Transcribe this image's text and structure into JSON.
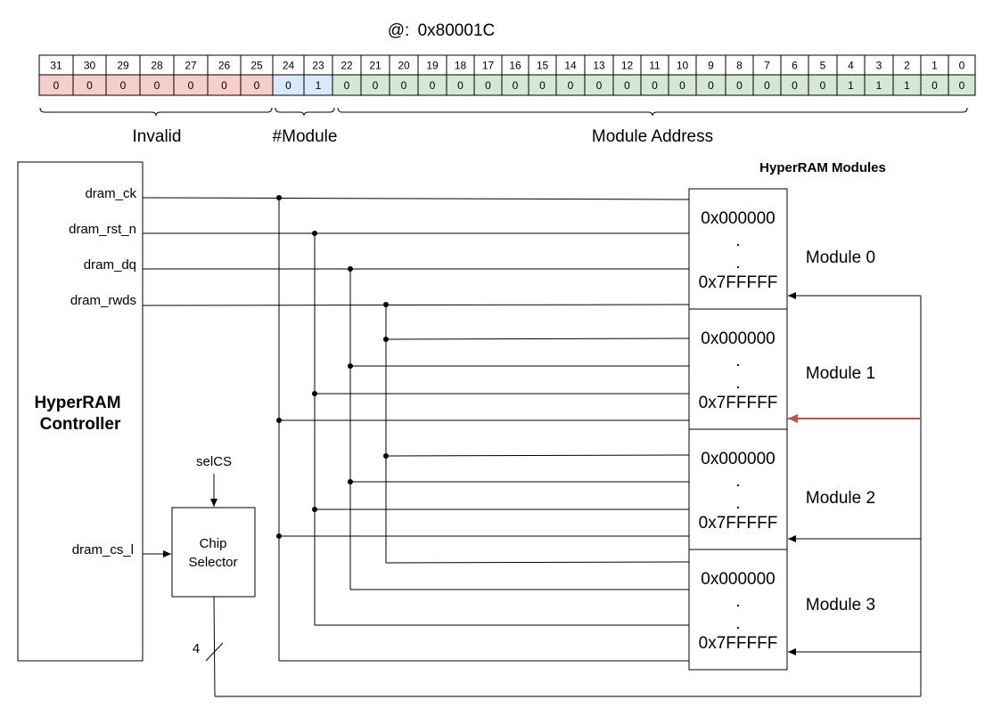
{
  "address": {
    "prefix": "@:",
    "value": "0x80001C"
  },
  "bits": {
    "numbers": [
      "31",
      "30",
      "29",
      "28",
      "27",
      "26",
      "25",
      "24",
      "23",
      "22",
      "21",
      "20",
      "19",
      "18",
      "17",
      "16",
      "15",
      "14",
      "13",
      "12",
      "11",
      "10",
      "9",
      "8",
      "7",
      "6",
      "5",
      "4",
      "3",
      "2",
      "1",
      "0"
    ],
    "values": [
      "0",
      "0",
      "0",
      "0",
      "0",
      "0",
      "0",
      "0",
      "1",
      "0",
      "0",
      "0",
      "0",
      "0",
      "0",
      "0",
      "0",
      "0",
      "0",
      "0",
      "0",
      "0",
      "0",
      "0",
      "0",
      "0",
      "0",
      "1",
      "1",
      "1",
      "0",
      "0"
    ]
  },
  "segments": [
    {
      "label": "Invalid",
      "color": "#f8cecc"
    },
    {
      "label": "#Module",
      "color": "#dae8fc"
    },
    {
      "label": "Module Address",
      "color": "#d5e8d4"
    }
  ],
  "controller": {
    "title_line1": "HyperRAM",
    "title_line2": "Controller",
    "signals": [
      "dram_ck",
      "dram_rst_n",
      "dram_dq",
      "dram_rwds"
    ],
    "cs_signal": "dram_cs_l"
  },
  "chip_selector": {
    "line1": "Chip",
    "line2": "Selector",
    "input_label": "selCS",
    "bus_width": "4"
  },
  "modules_title": "HyperRAM Modules",
  "modules": [
    {
      "label": "Module 0",
      "addr_start": "0x000000",
      "addr_end": "0x7FFFFF",
      "dot": "."
    },
    {
      "label": "Module 1",
      "addr_start": "0x000000",
      "addr_end": "0x7FFFFF",
      "dot": "."
    },
    {
      "label": "Module 2",
      "addr_start": "0x000000",
      "addr_end": "0x7FFFFF",
      "dot": "."
    },
    {
      "label": "Module 3",
      "addr_start": "0x000000",
      "addr_end": "0x7FFFFF",
      "dot": "."
    }
  ],
  "active_module_index": 1,
  "colors": {
    "active_select": "#b85450"
  }
}
